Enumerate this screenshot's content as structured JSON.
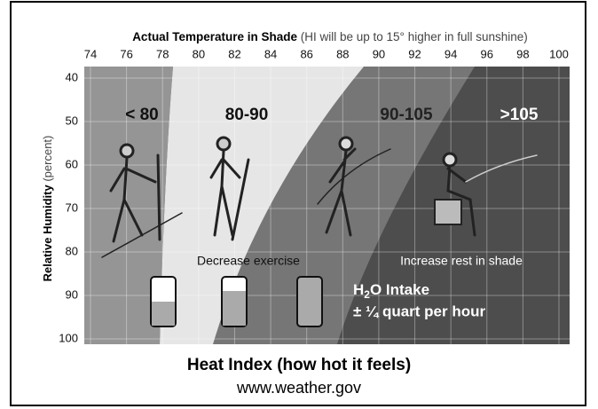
{
  "header": {
    "title": "Actual Temperature in Shade",
    "note": "(HI will be up to 15° higher in full sunshine)"
  },
  "x_axis": {
    "ticks": [
      74,
      76,
      78,
      80,
      82,
      84,
      86,
      88,
      90,
      92,
      94,
      96,
      98,
      100
    ]
  },
  "y_axis": {
    "label": "Relative Humidity",
    "unit": "(percent)",
    "ticks": [
      40,
      50,
      60,
      70,
      80,
      90,
      100
    ]
  },
  "zones": [
    {
      "label": "< 80"
    },
    {
      "label": "80-90"
    },
    {
      "label": "90-105"
    },
    {
      "label": ">105"
    }
  ],
  "advice": [
    "Decrease exercise",
    "Increase rest in shade"
  ],
  "water": {
    "chem_h": "H",
    "chem_sub": "2",
    "chem_rest": "O Intake",
    "rate": "± ¼ quart per hour"
  },
  "footer": {
    "title": "Heat Index (how hot it feels)",
    "url": "www.weather.gov"
  }
}
